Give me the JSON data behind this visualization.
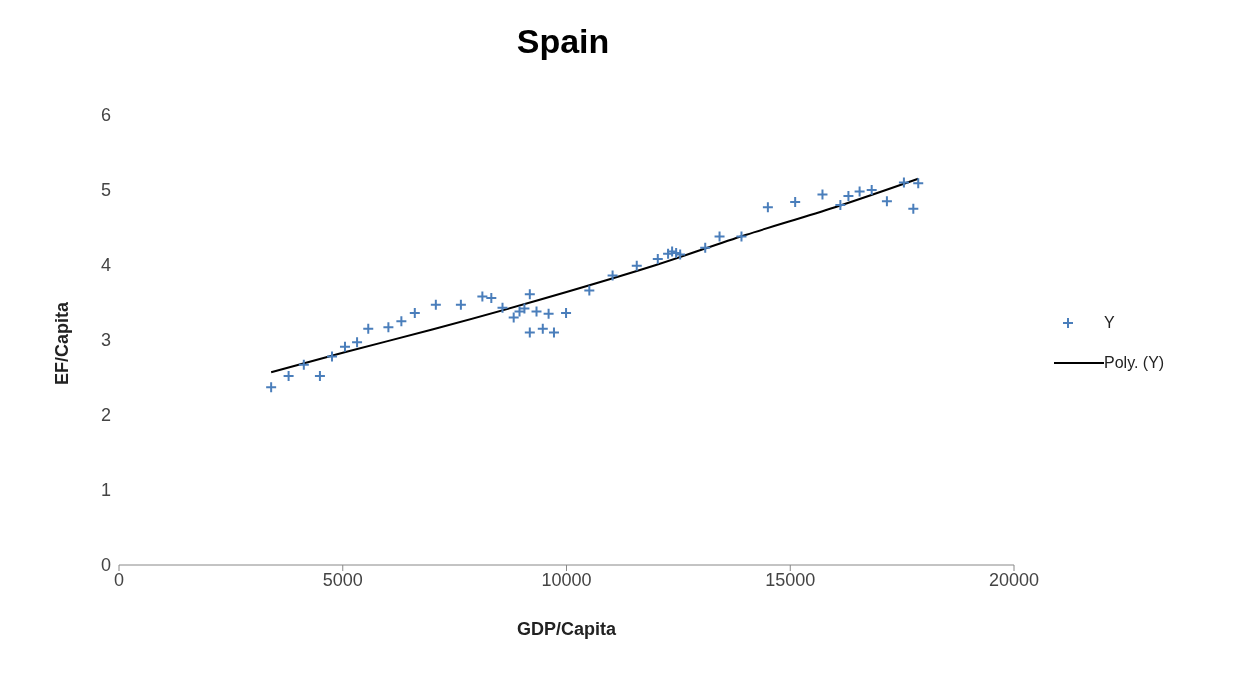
{
  "chart_data": {
    "type": "scatter",
    "title": "Spain",
    "xlabel": "GDP/Capita",
    "ylabel": "EF/Capita",
    "xlim": [
      0,
      20000
    ],
    "xticks": [
      0,
      5000,
      10000,
      15000,
      20000
    ],
    "ylim": [
      0,
      6
    ],
    "yticks": [
      0,
      1,
      2,
      3,
      4,
      5,
      6
    ],
    "grid": false,
    "legend": "right",
    "series": [
      {
        "name": "Y",
        "marker": "cross",
        "color": "#4a7ebb",
        "x": [
          3400,
          3790,
          4130,
          4490,
          4760,
          5050,
          5320,
          5570,
          6020,
          6310,
          6610,
          7080,
          7640,
          8120,
          8320,
          8570,
          8820,
          8950,
          9060,
          9180,
          9180,
          9330,
          9470,
          9600,
          9720,
          9990,
          10510,
          11030,
          11570,
          12040,
          12270,
          12360,
          12450,
          12540,
          13100,
          13420,
          13910,
          14500,
          15110,
          15720,
          16120,
          16300,
          16550,
          16820,
          17160,
          17540,
          17750,
          17860
        ],
        "values": [
          2.37,
          2.52,
          2.67,
          2.52,
          2.78,
          2.91,
          2.97,
          3.15,
          3.17,
          3.25,
          3.36,
          3.47,
          3.47,
          3.58,
          3.56,
          3.43,
          3.3,
          3.38,
          3.42,
          3.61,
          3.1,
          3.38,
          3.15,
          3.35,
          3.1,
          3.36,
          3.66,
          3.86,
          3.99,
          4.08,
          4.15,
          4.18,
          4.16,
          4.14,
          4.23,
          4.38,
          4.38,
          4.77,
          4.84,
          4.94,
          4.8,
          4.92,
          4.98,
          5.0,
          4.85,
          5.1,
          4.75,
          5.09
        ]
      },
      {
        "name": "Poly. (Y)",
        "type": "line",
        "color": "#000000",
        "marker": "none",
        "line_style": "solid",
        "x": [
          3400,
          5000,
          7000,
          10000,
          12000,
          14000,
          16000,
          17860
        ],
        "values": [
          2.57,
          2.83,
          3.14,
          3.64,
          4.0,
          4.4,
          4.77,
          5.15
        ]
      }
    ]
  }
}
